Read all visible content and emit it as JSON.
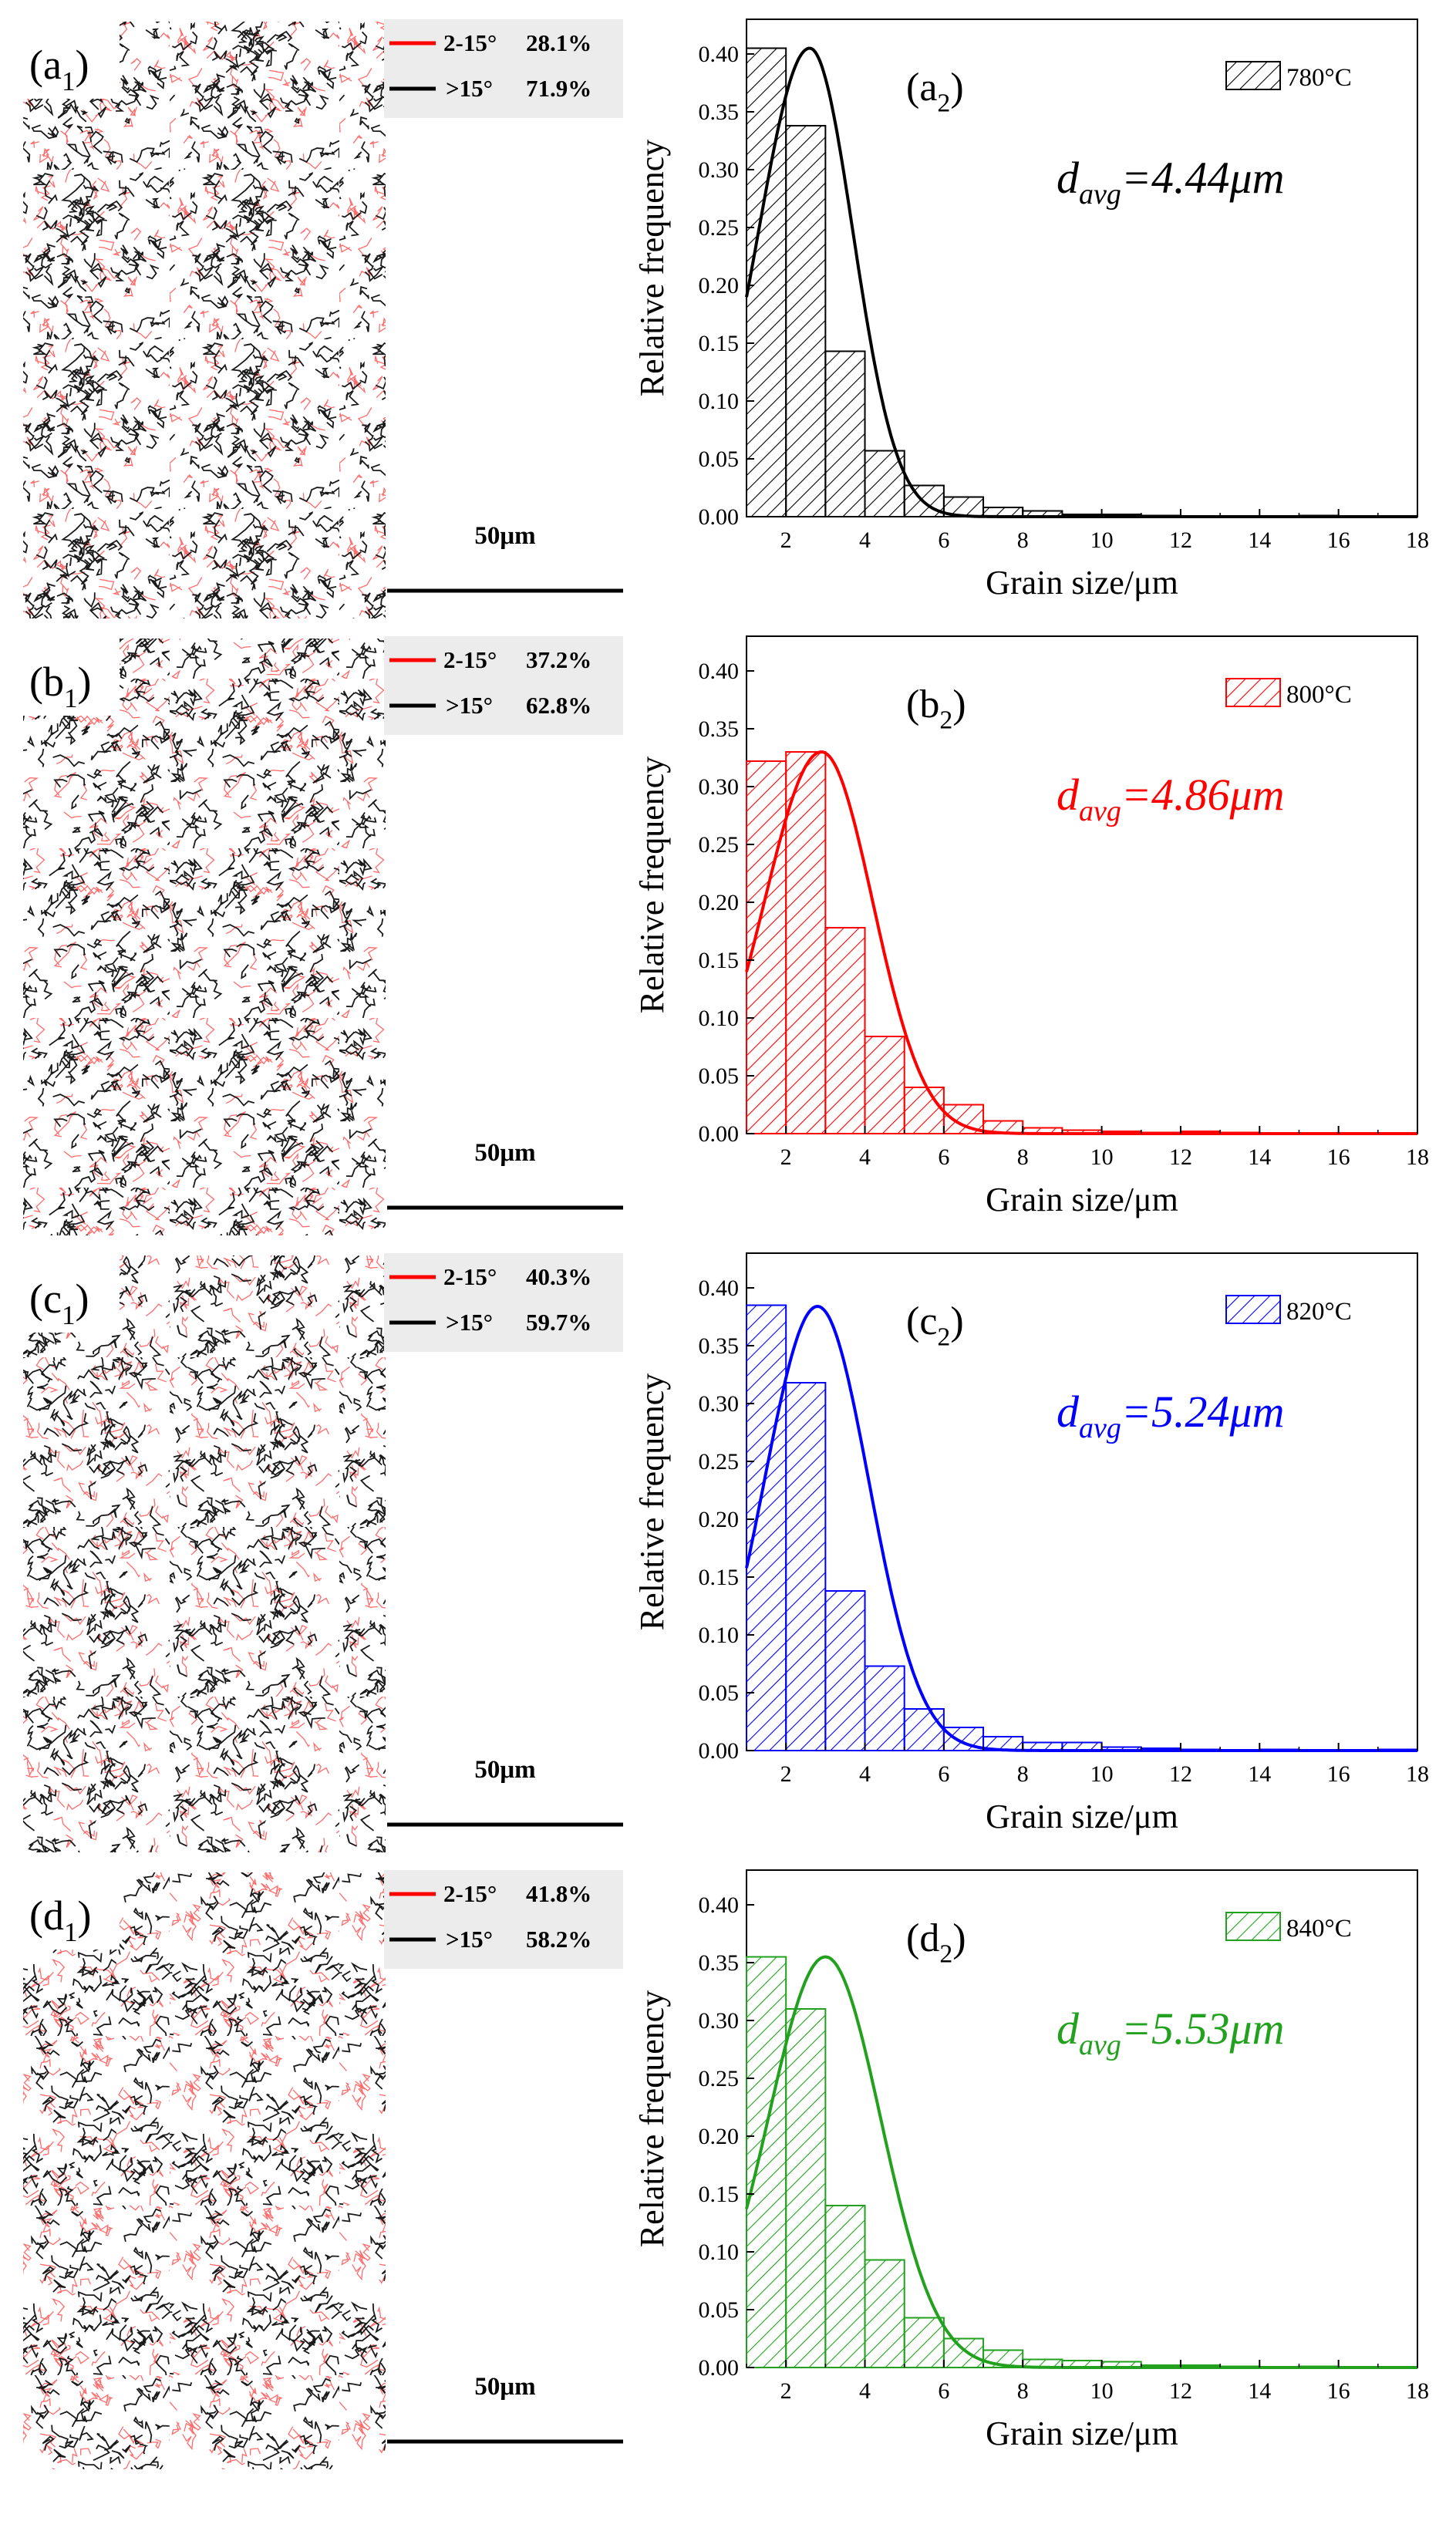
{
  "chart_data": [
    {
      "type": "bar",
      "panel": "a",
      "map_label": {
        "letter": "a",
        "sub": "1"
      },
      "chart_label": {
        "letter": "a",
        "sub": "2"
      },
      "color": "#000000",
      "legend": {
        "lagb": {
          "label": "2-15°",
          "value": "28.1%"
        },
        "hagb": {
          "label": ">15°",
          "value": "71.9%"
        }
      },
      "scale_bar": "50μm",
      "series_name": "780°C",
      "davg": {
        "prefix": "d",
        "sub": "avg",
        "value": "=4.44μm"
      },
      "bin_edges": [
        1,
        2,
        3,
        4,
        5,
        6,
        7,
        8,
        9,
        10,
        11,
        12,
        13,
        14,
        15,
        16,
        17,
        18
      ],
      "values": [
        0.405,
        0.338,
        0.143,
        0.057,
        0.027,
        0.017,
        0.008,
        0.005,
        0.002,
        0.002,
        0.001,
        0.0,
        0.0,
        0.0,
        0.001,
        0.0,
        0.0
      ],
      "fit": {
        "peak_x": 2.6,
        "peak_y": 0.405,
        "sigma_left": 1.3,
        "sigma_right": 1.1
      },
      "xlabel": "Grain size/μm",
      "ylabel": "Relative frequency",
      "xlim": [
        1,
        18
      ],
      "ylim": [
        0,
        0.43
      ],
      "xticks": [
        2,
        4,
        6,
        8,
        10,
        12,
        14,
        16,
        18
      ],
      "yticks": [
        0.0,
        0.05,
        0.1,
        0.15,
        0.2,
        0.25,
        0.3,
        0.35,
        0.4
      ]
    },
    {
      "type": "bar",
      "panel": "b",
      "map_label": {
        "letter": "b",
        "sub": "1"
      },
      "chart_label": {
        "letter": "b",
        "sub": "2"
      },
      "color": "#ff0000",
      "legend": {
        "lagb": {
          "label": "2-15°",
          "value": "37.2%"
        },
        "hagb": {
          "label": ">15°",
          "value": "62.8%"
        }
      },
      "scale_bar": "50μm",
      "series_name": "800°C",
      "davg": {
        "prefix": "d",
        "sub": "avg",
        "value": "=4.86μm"
      },
      "bin_edges": [
        1,
        2,
        3,
        4,
        5,
        6,
        7,
        8,
        9,
        10,
        11,
        12,
        13,
        14,
        15,
        16,
        17,
        18
      ],
      "values": [
        0.322,
        0.33,
        0.178,
        0.084,
        0.04,
        0.025,
        0.011,
        0.005,
        0.003,
        0.002,
        0.001,
        0.002,
        0.001,
        0.0,
        0.0,
        0.0,
        0.0
      ],
      "fit": {
        "peak_x": 2.9,
        "peak_y": 0.33,
        "sigma_left": 1.45,
        "sigma_right": 1.3
      },
      "xlabel": "Grain size/μm",
      "ylabel": "Relative frequency",
      "xlim": [
        1,
        18
      ],
      "ylim": [
        0,
        0.43
      ],
      "xticks": [
        2,
        4,
        6,
        8,
        10,
        12,
        14,
        16,
        18
      ],
      "yticks": [
        0.0,
        0.05,
        0.1,
        0.15,
        0.2,
        0.25,
        0.3,
        0.35,
        0.4
      ]
    },
    {
      "type": "bar",
      "panel": "c",
      "map_label": {
        "letter": "c",
        "sub": "1"
      },
      "chart_label": {
        "letter": "c",
        "sub": "2"
      },
      "color": "#0000ff",
      "legend": {
        "lagb": {
          "label": "2-15°",
          "value": "40.3%"
        },
        "hagb": {
          "label": ">15°",
          "value": "59.7%"
        }
      },
      "scale_bar": "50μm",
      "series_name": "820°C",
      "davg": {
        "prefix": "d",
        "sub": "avg",
        "value": "=5.24μm"
      },
      "bin_edges": [
        1,
        2,
        3,
        4,
        5,
        6,
        7,
        8,
        9,
        10,
        11,
        12,
        13,
        14,
        15,
        16,
        17,
        18
      ],
      "values": [
        0.385,
        0.318,
        0.138,
        0.073,
        0.036,
        0.02,
        0.012,
        0.007,
        0.007,
        0.003,
        0.002,
        0.001,
        0.0,
        0.001,
        0.0,
        0.0,
        0.001
      ],
      "fit": {
        "peak_x": 2.8,
        "peak_y": 0.384,
        "sigma_left": 1.35,
        "sigma_right": 1.3
      },
      "xlabel": "Grain size/μm",
      "ylabel": "Relative frequency",
      "xlim": [
        1,
        18
      ],
      "ylim": [
        0,
        0.43
      ],
      "xticks": [
        2,
        4,
        6,
        8,
        10,
        12,
        14,
        16,
        18
      ],
      "yticks": [
        0.0,
        0.05,
        0.1,
        0.15,
        0.2,
        0.25,
        0.3,
        0.35,
        0.4
      ]
    },
    {
      "type": "bar",
      "panel": "d",
      "map_label": {
        "letter": "d",
        "sub": "1"
      },
      "chart_label": {
        "letter": "d",
        "sub": "2"
      },
      "color": "#22a11e",
      "legend": {
        "lagb": {
          "label": "2-15°",
          "value": "41.8%"
        },
        "hagb": {
          "label": ">15°",
          "value": "58.2%"
        }
      },
      "scale_bar": "50μm",
      "series_name": "840°C",
      "davg": {
        "prefix": "d",
        "sub": "avg",
        "value": "=5.53μm"
      },
      "bin_edges": [
        1,
        2,
        3,
        4,
        5,
        6,
        7,
        8,
        9,
        10,
        11,
        12,
        13,
        14,
        15,
        16,
        17,
        18
      ],
      "values": [
        0.355,
        0.31,
        0.14,
        0.093,
        0.043,
        0.025,
        0.015,
        0.007,
        0.006,
        0.005,
        0.002,
        0.002,
        0.001,
        0.0,
        0.001,
        0.0,
        0.0
      ],
      "fit": {
        "peak_x": 3.0,
        "peak_y": 0.355,
        "sigma_left": 1.45,
        "sigma_right": 1.4
      },
      "xlabel": "Grain size/μm",
      "ylabel": "Relative frequency",
      "xlim": [
        1,
        18
      ],
      "ylim": [
        0,
        0.43
      ],
      "xticks": [
        2,
        4,
        6,
        8,
        10,
        12,
        14,
        16,
        18
      ],
      "yticks": [
        0.0,
        0.05,
        0.1,
        0.15,
        0.2,
        0.25,
        0.3,
        0.35,
        0.4
      ]
    }
  ]
}
